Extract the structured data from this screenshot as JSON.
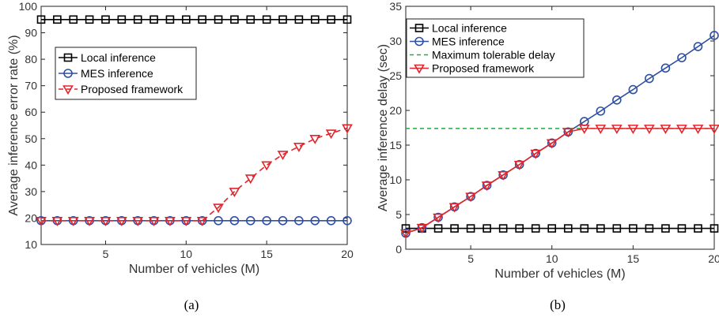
{
  "captions": [
    "(a)",
    "(b)"
  ],
  "chart_data": [
    {
      "type": "line",
      "xlabel": "Number of vehicles (M)",
      "ylabel": "Average inference error rate (%)",
      "xlim": [
        1,
        20
      ],
      "ylim": [
        10,
        100
      ],
      "xticks": [
        5,
        10,
        15,
        20
      ],
      "yticks": [
        10,
        20,
        30,
        40,
        50,
        60,
        70,
        80,
        90,
        100
      ],
      "grid": false,
      "legend_position": "upper-left",
      "x": [
        1,
        2,
        3,
        4,
        5,
        6,
        7,
        8,
        9,
        10,
        11,
        12,
        13,
        14,
        15,
        16,
        17,
        18,
        19,
        20
      ],
      "series": [
        {
          "name": "Local inference",
          "color": "#000000",
          "marker": "square",
          "dash": "solid",
          "values": [
            95,
            95,
            95,
            95,
            95,
            95,
            95,
            95,
            95,
            95,
            95,
            95,
            95,
            95,
            95,
            95,
            95,
            95,
            95,
            95
          ]
        },
        {
          "name": "MES inference",
          "color": "#2E4FA3",
          "marker": "circle",
          "dash": "solid",
          "values": [
            19,
            19,
            19,
            19,
            19,
            19,
            19,
            19,
            19,
            19,
            19,
            19,
            19,
            19,
            19,
            19,
            19,
            19,
            19,
            19
          ]
        },
        {
          "name": "Proposed framework",
          "color": "#E3242B",
          "marker": "triangle-down",
          "dash": "dashed",
          "values": [
            19,
            19,
            19,
            19,
            19,
            19,
            19,
            19,
            19,
            19,
            19,
            24,
            30,
            35,
            40,
            44,
            47,
            50,
            52,
            54
          ]
        }
      ]
    },
    {
      "type": "line",
      "xlabel": "Number of vehicles (M)",
      "ylabel": "Average inference delay (sec)",
      "xlim": [
        1,
        20
      ],
      "ylim": [
        0,
        35
      ],
      "xticks": [
        5,
        10,
        15,
        20
      ],
      "yticks": [
        0,
        5,
        10,
        15,
        20,
        25,
        30,
        35
      ],
      "grid": false,
      "legend_position": "upper-left",
      "x": [
        1,
        2,
        3,
        4,
        5,
        6,
        7,
        8,
        9,
        10,
        11,
        12,
        13,
        14,
        15,
        16,
        17,
        18,
        19,
        20
      ],
      "series": [
        {
          "name": "Local inference",
          "color": "#000000",
          "marker": "square",
          "dash": "solid",
          "values": [
            3,
            3,
            3,
            3,
            3,
            3,
            3,
            3,
            3,
            3,
            3,
            3,
            3,
            3,
            3,
            3,
            3,
            3,
            3,
            3
          ]
        },
        {
          "name": "MES inference",
          "color": "#2E4FA3",
          "marker": "circle",
          "dash": "solid",
          "values": [
            2.3,
            3.1,
            4.6,
            6.1,
            7.6,
            9.2,
            10.7,
            12.2,
            13.8,
            15.3,
            16.9,
            18.4,
            19.9,
            21.5,
            23.0,
            24.6,
            26.1,
            27.6,
            29.2,
            30.8
          ]
        },
        {
          "name": "Maximum tolerable delay",
          "color": "#22AA44",
          "marker": "none",
          "dash": "dashed",
          "values": [
            17.4,
            17.4,
            17.4,
            17.4,
            17.4,
            17.4,
            17.4,
            17.4,
            17.4,
            17.4,
            17.4,
            17.4,
            17.4,
            17.4,
            17.4,
            17.4,
            17.4,
            17.4,
            17.4,
            17.4
          ]
        },
        {
          "name": "Proposed framework",
          "color": "#E3242B",
          "marker": "triangle-down",
          "dash": "solid",
          "values": [
            2.3,
            3.1,
            4.6,
            6.1,
            7.6,
            9.2,
            10.7,
            12.2,
            13.8,
            15.3,
            16.9,
            17.4,
            17.4,
            17.4,
            17.4,
            17.4,
            17.4,
            17.4,
            17.4,
            17.4
          ]
        }
      ]
    }
  ]
}
